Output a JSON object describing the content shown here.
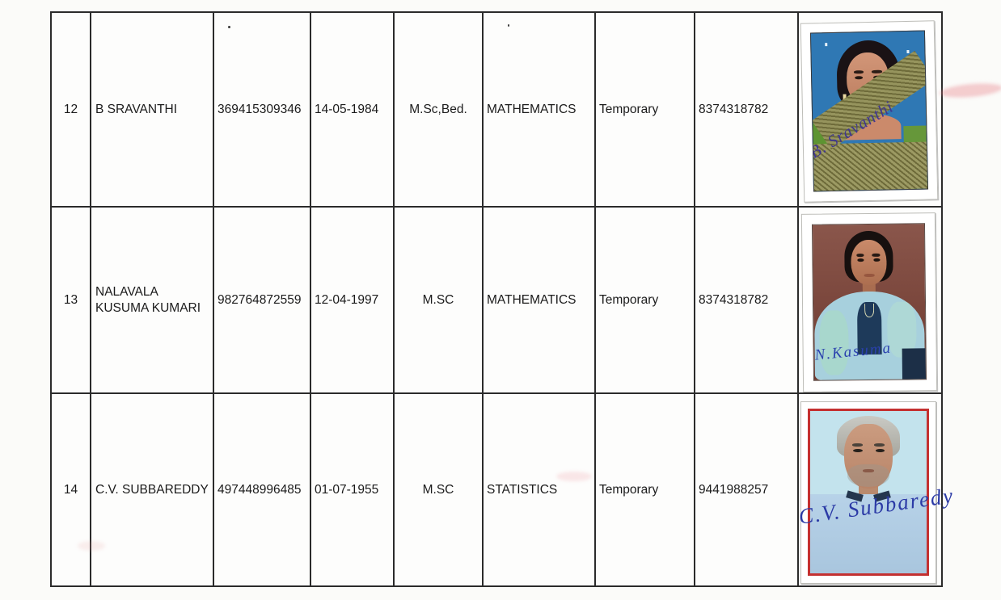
{
  "page": {
    "background_color": "#fbfbf9",
    "description": "scanned continuation page of a staff list table, rows 12-14"
  },
  "table": {
    "border_color": "#2b2b2b",
    "rows": [
      {
        "sno": "12",
        "name": "B SRAVANTHI",
        "id_number": "369415309346",
        "dob": "14-05-1984",
        "qualification": "M.Sc,Bed.",
        "subject": "MATHEMATICS",
        "status": "Temporary",
        "phone": "8374318782",
        "photo": {
          "description": "woman, blue studio background, olive saree with green blouse",
          "background_color": "#2f78b4",
          "signature": "B. Sravanthi",
          "signature_color": "#3f3690"
        }
      },
      {
        "sno": "13",
        "name": "NALAVALA KUSUMA KUMARI",
        "id_number": "982764872559",
        "dob": "12-04-1997",
        "qualification": "M.SC",
        "subject": "MATHEMATICS",
        "status": "Temporary",
        "phone": "8374318782",
        "photo": {
          "description": "young woman, maroon background, light blue dupatta over navy top",
          "background_color": "#774237",
          "signature": "N.Kasuma",
          "signature_color": "#2a41ae"
        }
      },
      {
        "sno": "14",
        "name": "C.V. SUBBAREDDY",
        "id_number": "497448996485",
        "dob": "01-07-1955",
        "qualification": "M.SC",
        "subject": "STATISTICS",
        "status": "Temporary",
        "phone": "9441988257",
        "photo": {
          "description": "elderly man, grey hair, light blue shirt, light cyan background, red photo border",
          "background_color": "#c3e3ed",
          "border_color": "#c43030",
          "signature": "C.V. Subbaredy",
          "signature_color": "#2b3aa6"
        }
      }
    ]
  }
}
